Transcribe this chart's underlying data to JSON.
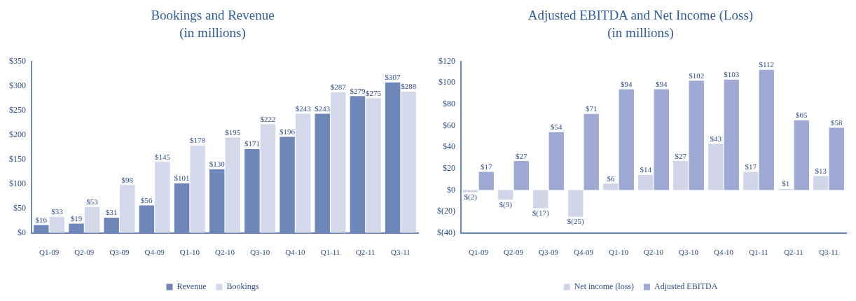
{
  "chart_data": [
    {
      "type": "bar",
      "title": "Bookings and Revenue",
      "subtitle": "(in millions)",
      "categories": [
        "Q1-09",
        "Q2-09",
        "Q3-09",
        "Q4-09",
        "Q1-10",
        "Q2-10",
        "Q3-10",
        "Q4-10",
        "Q1-11",
        "Q2-11",
        "Q3-11"
      ],
      "series": [
        {
          "name": "Revenue",
          "color": "#6f86b8",
          "values": [
            16,
            19,
            31,
            56,
            101,
            130,
            171,
            196,
            243,
            279,
            307
          ],
          "value_labels": [
            "$16",
            "$19",
            "$31",
            "$56",
            "$101",
            "$130",
            "$171",
            "$196",
            "$243",
            "$279",
            "$307"
          ]
        },
        {
          "name": "Bookings",
          "color": "#d3d8ea",
          "values": [
            33,
            53,
            98,
            145,
            178,
            195,
            222,
            243,
            287,
            275,
            288
          ],
          "value_labels": [
            "$33",
            "$53",
            "$98",
            "$145",
            "$178",
            "$195",
            "$222",
            "$243",
            "$287",
            "$275",
            "$288"
          ]
        }
      ],
      "ylim": [
        0,
        350
      ],
      "yticks": [
        {
          "value": 0,
          "label": "$0"
        },
        {
          "value": 50,
          "label": "$50"
        },
        {
          "value": 100,
          "label": "$100"
        },
        {
          "value": 150,
          "label": "$150"
        },
        {
          "value": 200,
          "label": "$200"
        },
        {
          "value": 250,
          "label": "$250"
        },
        {
          "value": 300,
          "label": "$300"
        },
        {
          "value": 350,
          "label": "$350"
        }
      ],
      "grid": false,
      "legend": "bottom"
    },
    {
      "type": "bar",
      "title": "Adjusted EBITDA and Net Income (Loss)",
      "subtitle": "(in millions)",
      "categories": [
        "Q1-09",
        "Q2-09",
        "Q3-09",
        "Q4-09",
        "Q1-10",
        "Q2-10",
        "Q3-10",
        "Q4-10",
        "Q1-11",
        "Q2-11",
        "Q3-11"
      ],
      "series": [
        {
          "name": "Net income (loss)",
          "color": "#d0d5e8",
          "values": [
            -2,
            -9,
            -17,
            -25,
            6,
            14,
            27,
            43,
            17,
            1,
            13
          ],
          "value_labels": [
            "$(2)",
            "$(9)",
            "$(17)",
            "$(25)",
            "$6",
            "$14",
            "$27",
            "$43",
            "$17",
            "$1",
            "$13"
          ]
        },
        {
          "name": "Adjusted EBITDA",
          "color": "#9eaad3",
          "values": [
            17,
            27,
            54,
            71,
            94,
            94,
            102,
            103,
            112,
            65,
            58
          ],
          "value_labels": [
            "$17",
            "$27",
            "$54",
            "$71",
            "$94",
            "$94",
            "$102",
            "$103",
            "$112",
            "$65",
            "$58"
          ]
        }
      ],
      "ylim": [
        -40,
        120
      ],
      "yticks": [
        {
          "value": -40,
          "label": "$(40)"
        },
        {
          "value": -20,
          "label": "$(20)"
        },
        {
          "value": 0,
          "label": "$0"
        },
        {
          "value": 20,
          "label": "$20"
        },
        {
          "value": 40,
          "label": "$40"
        },
        {
          "value": 60,
          "label": "$60"
        },
        {
          "value": 80,
          "label": "$80"
        },
        {
          "value": 100,
          "label": "$100"
        },
        {
          "value": 120,
          "label": "$120"
        }
      ],
      "grid": false,
      "legend": "bottom"
    }
  ]
}
